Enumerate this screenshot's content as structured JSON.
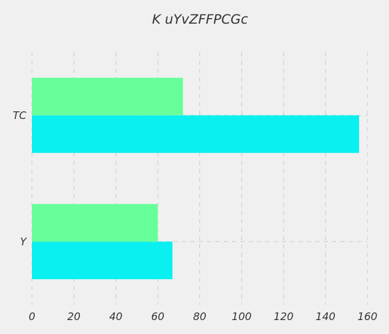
{
  "chart_data": {
    "type": "bar",
    "orientation": "horizontal",
    "title": "K uYvZFFPCGc",
    "xlabel": "",
    "ylabel": "",
    "categories": [
      "Y",
      "TC"
    ],
    "series": [
      {
        "values": [
          67,
          156
        ],
        "color": "#0af0f0"
      },
      {
        "values": [
          60,
          72
        ],
        "color": "#66ff99"
      }
    ],
    "xlim": [
      0,
      160
    ],
    "xticks": [
      0,
      20,
      40,
      60,
      80,
      100,
      120,
      140,
      160
    ],
    "grid": true,
    "legend": "none"
  }
}
